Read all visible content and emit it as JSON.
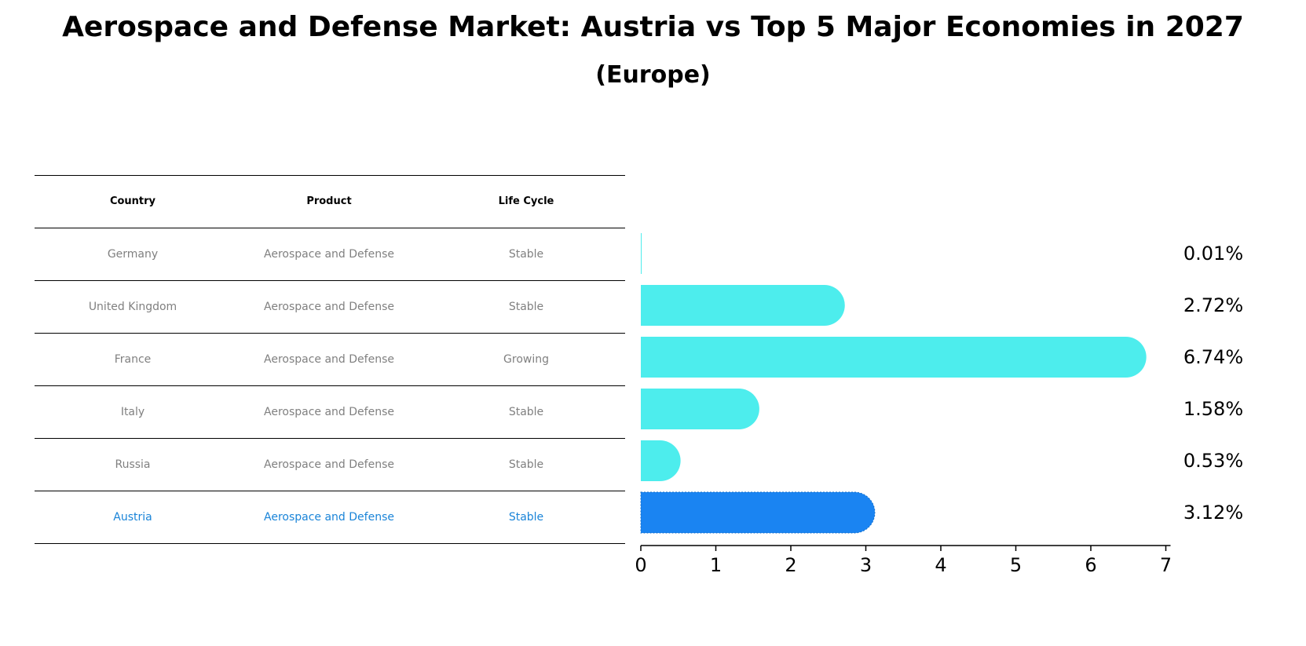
{
  "title": "Aerospace and Defense Market: Austria vs Top 5 Major Economies in 2027",
  "subtitle": "(Europe)",
  "table": {
    "headers": [
      "Country",
      "Product",
      "Life Cycle"
    ],
    "rows": [
      [
        "Germany",
        "Aerospace and Defense",
        "Stable"
      ],
      [
        "United Kingdom",
        "Aerospace and Defense",
        "Stable"
      ],
      [
        "France",
        "Aerospace and Defense",
        "Growing"
      ],
      [
        "Italy",
        "Aerospace and Defense",
        "Stable"
      ],
      [
        "Russia",
        "Aerospace and Defense",
        "Stable"
      ],
      [
        "Austria",
        "Aerospace and Defense",
        "Stable"
      ]
    ]
  },
  "colors": {
    "bar": "#4deded",
    "highlight": "#1a84f2",
    "highlight_text": "#1a84d8",
    "muted_text": "#808080"
  },
  "chart_data": {
    "type": "bar",
    "orientation": "horizontal",
    "categories": [
      "Germany",
      "United Kingdom",
      "France",
      "Italy",
      "Russia",
      "Austria"
    ],
    "values": [
      0.01,
      2.72,
      6.74,
      1.58,
      0.53,
      3.12
    ],
    "value_labels": [
      "0.01%",
      "2.72%",
      "6.74%",
      "1.58%",
      "0.53%",
      "3.12%"
    ],
    "highlight": "Austria",
    "xlim": [
      0,
      7
    ],
    "xticks": [
      0,
      1,
      2,
      3,
      4,
      5,
      6,
      7
    ],
    "grid": false
  }
}
